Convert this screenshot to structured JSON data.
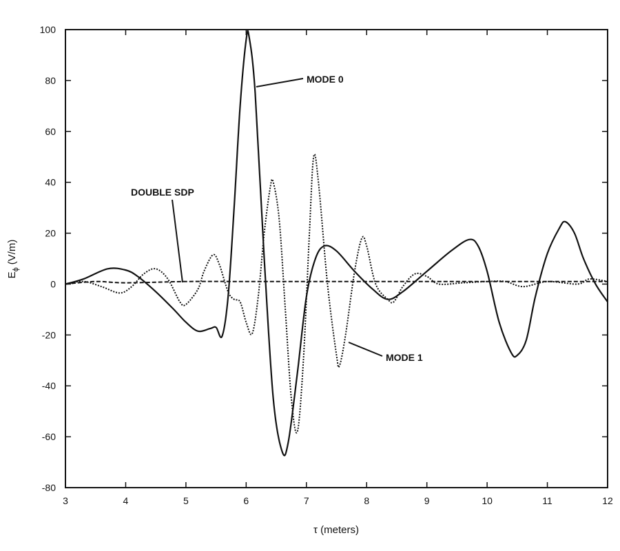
{
  "chart_data": {
    "type": "line",
    "title": "",
    "xlabel": "τ (meters)",
    "ylabel_main": "E",
    "ylabel_sub": "ϕ",
    "ylabel_unit": "(V/m)",
    "xlim": [
      3,
      12
    ],
    "ylim": [
      -80,
      100
    ],
    "xticks": [
      "3",
      "4",
      "5",
      "6",
      "7",
      "8",
      "9",
      "10",
      "11",
      "12"
    ],
    "yticks": [
      "100",
      "80",
      "60",
      "40",
      "20",
      "0",
      "-20",
      "-40",
      "-60",
      "-80"
    ],
    "grid": false,
    "series": [
      {
        "name": "MODE 0",
        "style": "solid",
        "x": [
          3,
          3.3,
          3.7,
          4.0,
          4.2,
          4.5,
          4.8,
          5.0,
          5.2,
          5.4,
          5.5,
          5.6,
          5.7,
          5.8,
          5.9,
          6.0,
          6.05,
          6.15,
          6.3,
          6.45,
          6.6,
          6.7,
          6.85,
          7.0,
          7.15,
          7.3,
          7.5,
          7.8,
          8.1,
          8.35,
          8.6,
          9.0,
          9.4,
          9.7,
          9.85,
          10.0,
          10.2,
          10.4,
          10.5,
          10.65,
          10.8,
          11.0,
          11.2,
          11.3,
          11.45,
          11.6,
          11.8,
          12
        ],
        "y": [
          0,
          2,
          6,
          5.5,
          3,
          -3,
          -10,
          -15,
          -18.5,
          -17.5,
          -17,
          -20.5,
          -5,
          30,
          70,
          96,
          97,
          75,
          10,
          -45,
          -66,
          -62,
          -35,
          -5,
          10,
          15,
          13,
          5,
          -2,
          -6,
          -3,
          5,
          13,
          17.5,
          15,
          5,
          -15,
          -27,
          -28,
          -22,
          -5,
          12,
          22,
          24.5,
          20,
          10,
          0,
          -7
        ]
      },
      {
        "name": "MODE 1",
        "style": "dotted",
        "x": [
          3,
          3.3,
          3.6,
          3.9,
          4.1,
          4.3,
          4.5,
          4.7,
          4.9,
          5.0,
          5.2,
          5.3,
          5.45,
          5.55,
          5.7,
          5.8,
          5.9,
          6.0,
          6.1,
          6.2,
          6.3,
          6.4,
          6.45,
          6.55,
          6.65,
          6.75,
          6.85,
          6.95,
          7.05,
          7.12,
          7.2,
          7.35,
          7.5,
          7.55,
          7.65,
          7.8,
          7.92,
          8.0,
          8.15,
          8.35,
          8.45,
          8.6,
          8.8,
          9.0,
          9.2,
          9.6,
          10.0,
          10.3,
          10.6,
          11.0,
          11.5,
          11.7,
          12
        ],
        "y": [
          0,
          1,
          -1,
          -3.5,
          -1,
          4,
          6,
          2,
          -7,
          -8,
          -2,
          5,
          11.5,
          8,
          -3,
          -6,
          -7,
          -15,
          -19.5,
          -5,
          20,
          38,
          40,
          25,
          -10,
          -45,
          -58,
          -30,
          20,
          50,
          40,
          0,
          -28,
          -32,
          -20,
          5,
          18,
          15,
          0,
          -6,
          -7,
          -1,
          4,
          3,
          0,
          0.5,
          1,
          1,
          -1,
          1,
          0,
          2,
          1
        ]
      },
      {
        "name": "DOUBLE SDP",
        "style": "dashed",
        "x": [
          3,
          3.5,
          4,
          5,
          6,
          7,
          8,
          9,
          10,
          11,
          12
        ],
        "y": [
          0,
          1,
          0.5,
          1,
          1,
          1,
          1,
          1,
          1,
          1,
          1
        ]
      }
    ],
    "annotations": [
      {
        "text": "MODE 0",
        "target_series": "MODE 0"
      },
      {
        "text": "DOUBLE SDP",
        "target_series": "DOUBLE SDP"
      },
      {
        "text": "MODE 1",
        "target_series": "MODE 1"
      }
    ]
  }
}
